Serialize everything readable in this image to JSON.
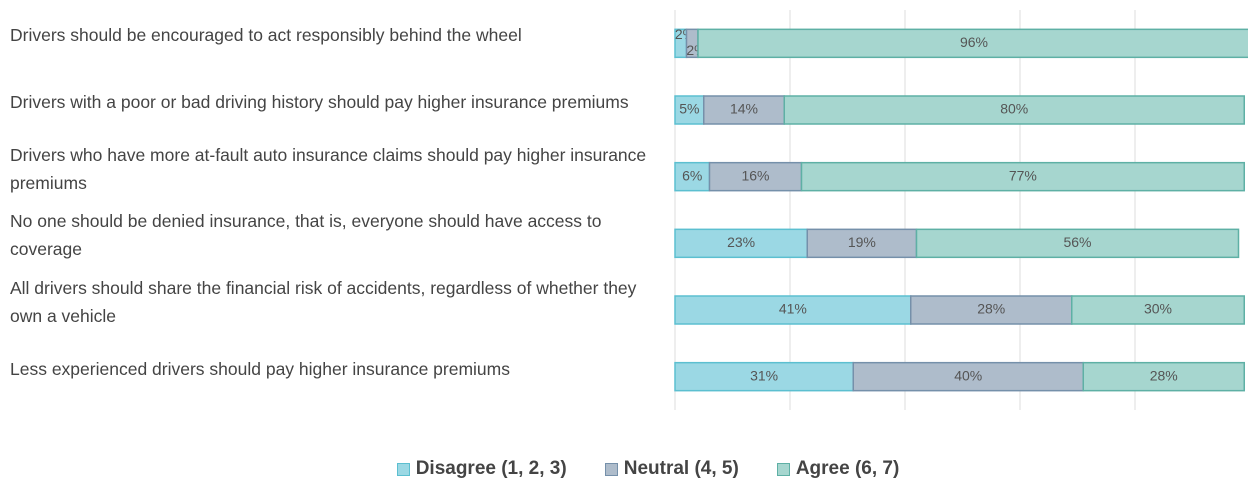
{
  "chart_data": {
    "type": "stacked-bar-horizontal",
    "categories": [
      "Drivers should be encouraged to act responsibly behind the wheel",
      "Drivers with a poor or bad driving history should pay higher insurance premiums",
      "Drivers who have more at-fault auto insurance claims should pay higher insurance premiums",
      "No one should be denied insurance, that is, everyone should have access to coverage",
      "All drivers should share the financial risk of accidents, regardless of whether they own a vehicle",
      "Less experienced drivers should pay higher insurance premiums"
    ],
    "series": [
      {
        "name": "Disagree (1, 2, 3)",
        "color": "#9bd8e4",
        "values": [
          2,
          5,
          6,
          23,
          41,
          31
        ],
        "value_labels": [
          "2%",
          "5%",
          "6%",
          "23%",
          "41%",
          "31%"
        ]
      },
      {
        "name": "Neutral (4, 5)",
        "color": "#aebccb",
        "values": [
          2,
          14,
          16,
          19,
          28,
          40
        ],
        "value_labels": [
          "2%",
          "14%",
          "16%",
          "19%",
          "28%",
          "40%"
        ]
      },
      {
        "name": "Agree (6, 7)",
        "color": "#a6d6cf",
        "values": [
          96,
          80,
          77,
          56,
          30,
          28
        ],
        "value_labels": [
          "96%",
          "80%",
          "77%",
          "56%",
          "30%",
          "28%"
        ]
      }
    ],
    "xlim": [
      0,
      100
    ],
    "xticks": [
      0,
      20,
      40,
      60,
      80,
      100
    ],
    "grid": true,
    "legend": "bottom"
  }
}
